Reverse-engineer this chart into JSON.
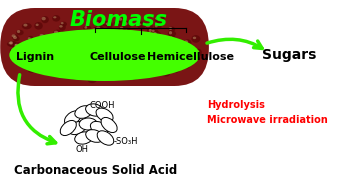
{
  "title": "Biomass",
  "title_color": "#00FF00",
  "title_fontsize": 15,
  "label_lignin": "Lignin",
  "label_cellulose": "Cellulose",
  "label_hemicellulose": "Hemicellulose",
  "label_sugars": "Sugars",
  "label_solid_acid": "Carbonaceous Solid Acid",
  "label_hydrolysis": "Hydrolysis",
  "label_microwave": "Microwave irradiation",
  "label_cooh": "COOH",
  "label_oh": "OH",
  "label_so3h": "-SO₃H",
  "arrow_color": "#33EE00",
  "red_color": "#FF0000",
  "green_bright": "#44FF00",
  "corn_color": "#7A1515",
  "corn_highlight": "#C8C8C8",
  "background": "#FFFFFF"
}
